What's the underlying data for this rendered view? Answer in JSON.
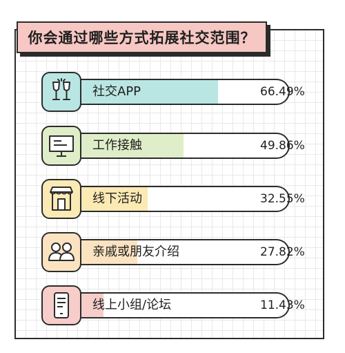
{
  "title": "你会通过哪些方式拓展社交范围？",
  "chart_data": {
    "type": "bar",
    "orientation": "horizontal",
    "title": "你会通过哪些方式拓展社交范围？",
    "categories": [
      "社交APP",
      "工作接触",
      "线下活动",
      "亲戚或朋友介绍",
      "线上小组/论坛"
    ],
    "values": [
      66.49,
      49.86,
      32.55,
      27.82,
      11.43
    ],
    "value_labels": [
      "66.49%",
      "49.86%",
      "32.55%",
      "27.82%",
      "11.43%"
    ],
    "unit": "%",
    "xlim": [
      0,
      100
    ],
    "grid": false,
    "legend": "none",
    "colors": [
      "#b9e6e2",
      "#dfeec8",
      "#fbeab4",
      "#fbe3c1",
      "#f6cdc9"
    ],
    "icons": [
      "champagne-glasses-icon",
      "monitor-icon",
      "storefront-icon",
      "people-icon",
      "phone-icon"
    ]
  },
  "colors": {
    "title_bg": "#f6c7c3",
    "outline": "#2b2b2b",
    "grid": "#e8e8e8"
  }
}
